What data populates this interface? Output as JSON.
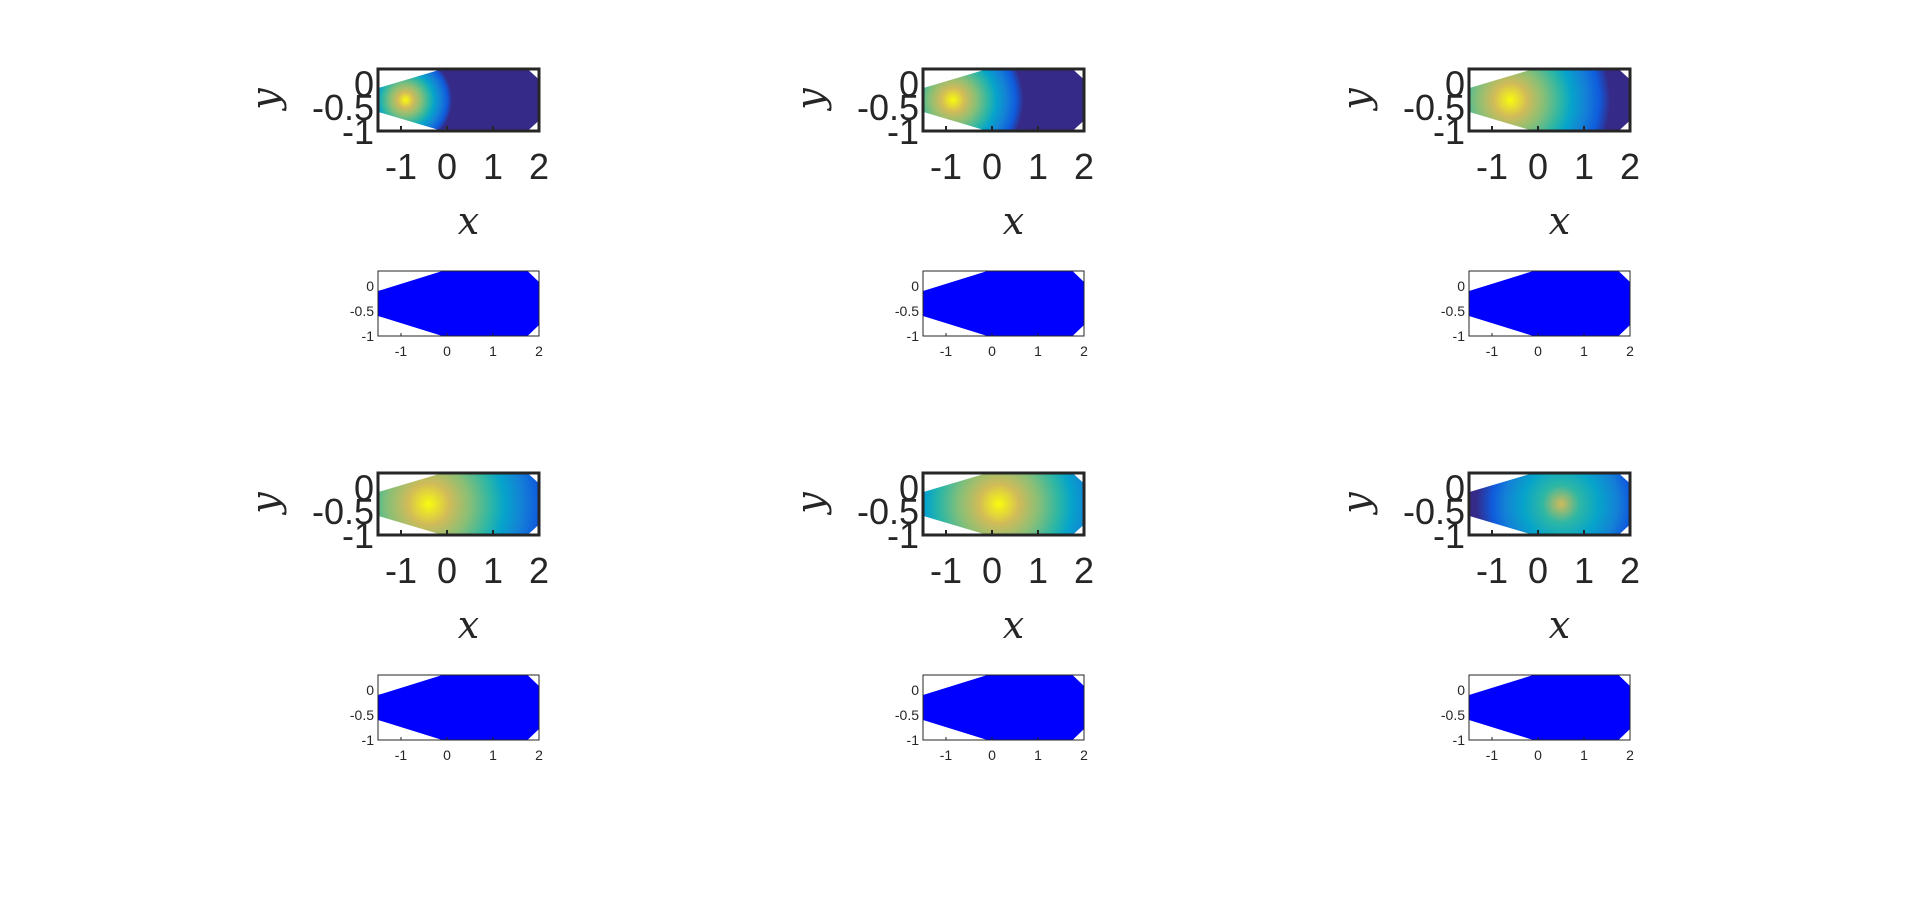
{
  "figure": {
    "background": "#ffffff"
  },
  "chart_data": [
    {
      "type": "heatmap",
      "row": 1,
      "col": 1,
      "xlabel": "x",
      "ylabel": "y",
      "xlim": [
        -1.5,
        2
      ],
      "ylim": [
        -1,
        0.3
      ],
      "xticks": [
        "-1",
        "0",
        "1",
        "2"
      ],
      "yticks": [
        "0",
        "-0.5",
        "-1"
      ],
      "hotspot_x": -0.9,
      "hotspot_y": -0.35,
      "hot_radius": 0.75,
      "spread": 1.5,
      "peak_level": 1.0
    },
    {
      "type": "scatter",
      "row": 1,
      "col": 1,
      "xlim": [
        -1.5,
        2
      ],
      "ylim": [
        -1,
        0.3
      ],
      "xticks": [
        "-1",
        "0",
        "1",
        "2"
      ],
      "yticks": [
        "0",
        "-0.5",
        "-1"
      ],
      "marker_color": "#0000ff"
    },
    {
      "type": "heatmap",
      "row": 1,
      "col": 2,
      "xlabel": "x",
      "ylabel": "y",
      "xlim": [
        -1.5,
        2
      ],
      "ylim": [
        -1,
        0.3
      ],
      "xticks": [
        "-1",
        "0",
        "1",
        "2"
      ],
      "yticks": [
        "0",
        "-0.5",
        "-1"
      ],
      "hotspot_x": -0.85,
      "hotspot_y": -0.35,
      "hot_radius": 0.95,
      "spread": 1.8,
      "peak_level": 1.0
    },
    {
      "type": "scatter",
      "row": 1,
      "col": 2,
      "xlim": [
        -1.5,
        2
      ],
      "ylim": [
        -1,
        0.3
      ],
      "xticks": [
        "-1",
        "0",
        "1",
        "2"
      ],
      "yticks": [
        "0",
        "-0.5",
        "-1"
      ],
      "marker_color": "#0000ff"
    },
    {
      "type": "heatmap",
      "row": 1,
      "col": 3,
      "xlabel": "x",
      "ylabel": "y",
      "xlim": [
        -1.5,
        2
      ],
      "ylim": [
        -1,
        0.3
      ],
      "xticks": [
        "-1",
        "0",
        "1",
        "2"
      ],
      "yticks": [
        "0",
        "-0.5",
        "-1"
      ],
      "hotspot_x": -0.6,
      "hotspot_y": -0.35,
      "hot_radius": 1.05,
      "spread": 2.3,
      "peak_level": 1.0
    },
    {
      "type": "scatter",
      "row": 1,
      "col": 3,
      "xlim": [
        -1.5,
        2
      ],
      "ylim": [
        -1,
        0.3
      ],
      "xticks": [
        "-1",
        "0",
        "1",
        "2"
      ],
      "yticks": [
        "0",
        "-0.5",
        "-1"
      ],
      "marker_color": "#0000ff"
    },
    {
      "type": "heatmap",
      "row": 2,
      "col": 1,
      "xlabel": "x",
      "ylabel": "y",
      "xlim": [
        -1.5,
        2
      ],
      "ylim": [
        -1,
        0.3
      ],
      "xticks": [
        "-1",
        "0",
        "1",
        "2"
      ],
      "yticks": [
        "0",
        "-0.5",
        "-1"
      ],
      "hotspot_x": -0.4,
      "hotspot_y": -0.35,
      "hot_radius": 1.15,
      "spread": 2.6,
      "peak_level": 1.0
    },
    {
      "type": "scatter",
      "row": 2,
      "col": 1,
      "xlim": [
        -1.5,
        2
      ],
      "ylim": [
        -1,
        0.3
      ],
      "xticks": [
        "-1",
        "0",
        "1",
        "2"
      ],
      "yticks": [
        "0",
        "-0.5",
        "-1"
      ],
      "marker_color": "#0000ff"
    },
    {
      "type": "heatmap",
      "row": 2,
      "col": 2,
      "xlabel": "x",
      "ylabel": "y",
      "xlim": [
        -1.5,
        2
      ],
      "ylim": [
        -1,
        0.3
      ],
      "xticks": [
        "-1",
        "0",
        "1",
        "2"
      ],
      "yticks": [
        "0",
        "-0.5",
        "-1"
      ],
      "hotspot_x": 0.15,
      "hotspot_y": -0.35,
      "hot_radius": 1.25,
      "spread": 2.3,
      "peak_level": 1.0
    },
    {
      "type": "scatter",
      "row": 2,
      "col": 2,
      "xlim": [
        -1.5,
        2
      ],
      "ylim": [
        -1,
        0.3
      ],
      "xticks": [
        "-1",
        "0",
        "1",
        "2"
      ],
      "yticks": [
        "0",
        "-0.5",
        "-1"
      ],
      "marker_color": "#0000ff"
    },
    {
      "type": "heatmap",
      "row": 2,
      "col": 3,
      "xlabel": "x",
      "ylabel": "y",
      "xlim": [
        -1.5,
        2
      ],
      "ylim": [
        -1,
        0.3
      ],
      "xticks": [
        "-1",
        "0",
        "1",
        "2"
      ],
      "yticks": [
        "0",
        "-0.5",
        "-1"
      ],
      "hotspot_x": 0.5,
      "hotspot_y": -0.35,
      "hot_radius": 1.6,
      "spread": 1.7,
      "peak_level": 0.8
    },
    {
      "type": "scatter",
      "row": 2,
      "col": 3,
      "xlim": [
        -1.5,
        2
      ],
      "ylim": [
        -1,
        0.3
      ],
      "xticks": [
        "-1",
        "0",
        "1",
        "2"
      ],
      "yticks": [
        "0",
        "-0.5",
        "-1"
      ],
      "marker_color": "#0000ff"
    }
  ]
}
